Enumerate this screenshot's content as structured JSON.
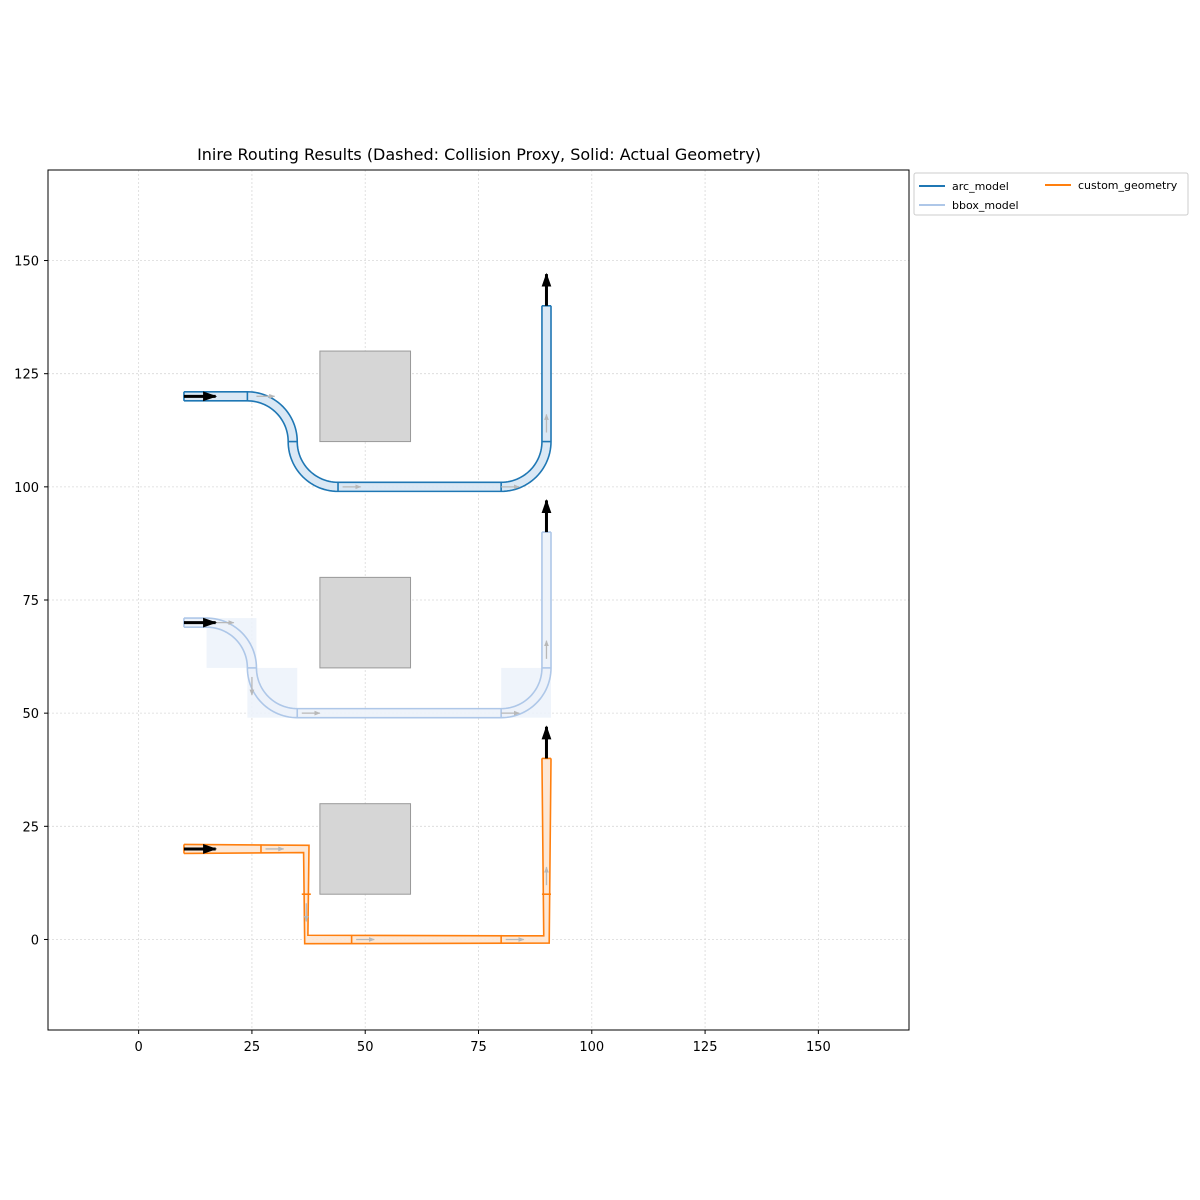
{
  "chart_data": {
    "type": "line",
    "title": "Inire Routing Results (Dashed: Collision Proxy, Solid: Actual Geometry)",
    "xlabel": "",
    "ylabel": "",
    "xlim": [
      -20,
      170
    ],
    "ylim": [
      -20,
      170
    ],
    "xticks": [
      0,
      25,
      50,
      75,
      100,
      125,
      150
    ],
    "yticks": [
      0,
      25,
      50,
      75,
      100,
      125,
      150
    ],
    "xtick_labels": [
      "0",
      "25",
      "50",
      "75",
      "100",
      "125",
      "150"
    ],
    "ytick_labels": [
      "0",
      "25",
      "50",
      "75",
      "100",
      "125",
      "150"
    ],
    "grid": true,
    "legend_position": "outside-top-right",
    "obstacles": [
      {
        "x": [
          40,
          60
        ],
        "y": [
          110,
          130
        ]
      },
      {
        "x": [
          40,
          60
        ],
        "y": [
          60,
          80
        ]
      },
      {
        "x": [
          40,
          60
        ],
        "y": [
          10,
          30
        ]
      }
    ],
    "series": [
      {
        "name": "arc_model",
        "color": "#1f77b4",
        "fill": "#d6e6f4",
        "width": 2,
        "path": [
          {
            "seg": "line",
            "from": [
              10,
              120
            ],
            "to": [
              24,
              120
            ]
          },
          {
            "seg": "arc",
            "c": [
              24,
              110
            ],
            "r": 10,
            "a0": 90,
            "a1": 0
          },
          {
            "seg": "arc",
            "c": [
              44,
              110
            ],
            "r": 10,
            "a0": 180,
            "a1": 270
          },
          {
            "seg": "line",
            "from": [
              44,
              100
            ],
            "to": [
              80,
              100
            ]
          },
          {
            "seg": "arc",
            "c": [
              80,
              110
            ],
            "r": 10,
            "a0": 270,
            "a1": 360
          },
          {
            "seg": "line",
            "from": [
              90,
              110
            ],
            "to": [
              90,
              140
            ]
          }
        ],
        "boundaries": [
          [
            24,
            120,
            0
          ],
          [
            34,
            110,
            90
          ],
          [
            44,
            100,
            0
          ],
          [
            80,
            100,
            0
          ],
          [
            90,
            110,
            90
          ]
        ],
        "arrows": [
          [
            26,
            120,
            30,
            120
          ],
          [
            45,
            100,
            49,
            100
          ],
          [
            80,
            100,
            84,
            100
          ],
          [
            90,
            112,
            90,
            116
          ]
        ],
        "proxies": [],
        "start": [
          10,
          120,
          17,
          120
        ],
        "end": [
          90,
          140,
          90,
          147
        ]
      },
      {
        "name": "bbox_model",
        "color": "#aec7e8",
        "fill": "#ecf2fa",
        "width": 2,
        "path": [
          {
            "seg": "line",
            "from": [
              10,
              70
            ],
            "to": [
              15,
              70
            ]
          },
          {
            "seg": "arc",
            "c": [
              15,
              60
            ],
            "r": 10,
            "a0": 90,
            "a1": 0
          },
          {
            "seg": "arc",
            "c": [
              35,
              60
            ],
            "r": 10,
            "a0": 180,
            "a1": 270
          },
          {
            "seg": "line",
            "from": [
              35,
              50
            ],
            "to": [
              80,
              50
            ]
          },
          {
            "seg": "arc",
            "c": [
              80,
              60
            ],
            "r": 10,
            "a0": 270,
            "a1": 360
          },
          {
            "seg": "line",
            "from": [
              90,
              60
            ],
            "to": [
              90,
              90
            ]
          }
        ],
        "boundaries": [
          [
            25,
            60,
            90
          ],
          [
            35,
            50,
            0
          ],
          [
            80,
            50,
            0
          ],
          [
            90,
            60,
            90
          ]
        ],
        "arrows": [
          [
            17,
            70,
            21,
            70
          ],
          [
            25,
            58,
            25,
            54
          ],
          [
            36,
            50,
            40,
            50
          ],
          [
            80,
            50,
            84,
            50
          ],
          [
            90,
            62,
            90,
            66
          ]
        ],
        "proxies": [
          {
            "x": [
              15,
              26
            ],
            "y": [
              60,
              71
            ]
          },
          {
            "x": [
              24,
              35
            ],
            "y": [
              49,
              60
            ]
          },
          {
            "x": [
              80,
              91
            ],
            "y": [
              49,
              60
            ]
          }
        ],
        "start": [
          10,
          70,
          17,
          70
        ],
        "end": [
          90,
          90,
          90,
          97
        ]
      },
      {
        "name": "custom_geometry",
        "color": "#ff7f0e",
        "fill": "#fde6d2",
        "width": 2,
        "path": [
          {
            "seg": "line",
            "from": [
              10,
              20
            ],
            "to": [
              37,
              20
            ]
          },
          {
            "seg": "line",
            "from": [
              37,
              20
            ],
            "to": [
              37,
              0
            ]
          },
          {
            "seg": "line",
            "from": [
              37,
              0
            ],
            "to": [
              90,
              0
            ]
          },
          {
            "seg": "line",
            "from": [
              90,
              0
            ],
            "to": [
              90,
              40
            ]
          }
        ],
        "boundaries": [
          [
            27,
            20,
            0
          ],
          [
            37,
            10,
            90
          ],
          [
            47,
            0,
            0
          ],
          [
            80,
            0,
            0
          ],
          [
            90,
            10,
            90
          ]
        ],
        "arrows": [
          [
            28,
            20,
            32,
            20
          ],
          [
            37,
            8,
            37,
            4
          ],
          [
            48,
            0,
            52,
            0
          ],
          [
            81,
            0,
            85,
            0
          ],
          [
            90,
            12,
            90,
            16
          ]
        ],
        "proxies": [],
        "start": [
          10,
          20,
          17,
          20
        ],
        "end": [
          90,
          40,
          90,
          47
        ]
      }
    ]
  }
}
